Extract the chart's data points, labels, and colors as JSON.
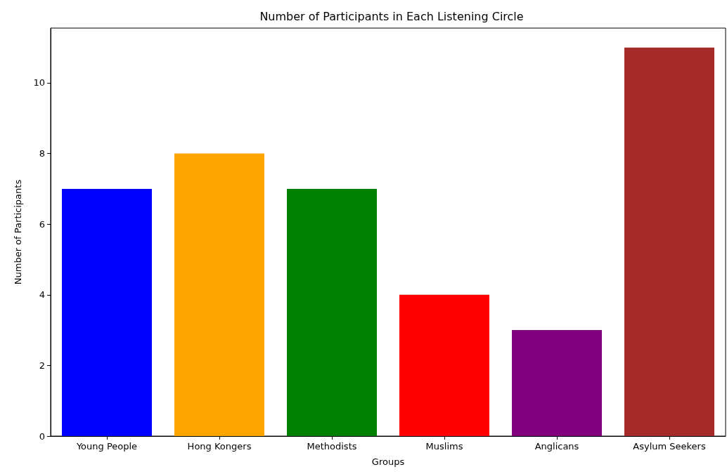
{
  "chart_data": {
    "type": "bar",
    "title": "Number of Participants in Each Listening Circle",
    "xlabel": "Groups",
    "ylabel": "Number of Participants",
    "categories": [
      "Young People",
      "Hong Kongers",
      "Methodists",
      "Muslims",
      "Anglicans",
      "Asylum Seekers"
    ],
    "values": [
      7,
      8,
      7,
      4,
      3,
      11
    ],
    "colors": [
      "#0000ff",
      "#ffa500",
      "#008000",
      "#ff0000",
      "#800080",
      "#a52a2a"
    ],
    "ylim": [
      0,
      11.55
    ],
    "yticks": [
      0,
      2,
      4,
      6,
      8,
      10
    ],
    "grid": false
  }
}
